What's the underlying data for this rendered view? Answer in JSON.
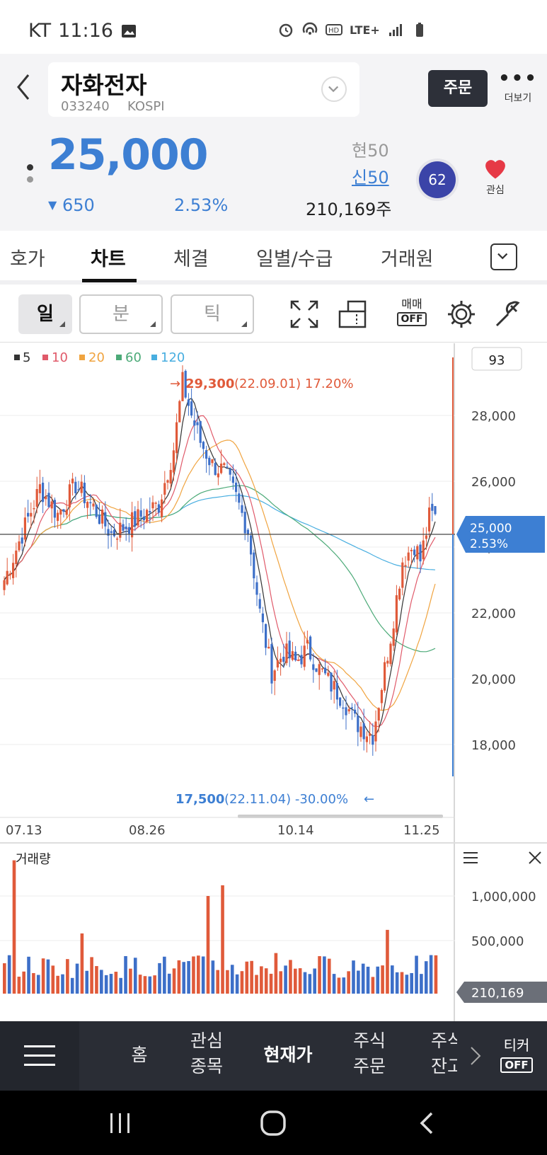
{
  "status_bar": {
    "carrier": "KT",
    "time": "11:16",
    "network": "LTE+"
  },
  "header": {
    "stock_name": "자화전자",
    "stock_code": "033240",
    "market": "KOSPI",
    "order_label": "주문",
    "more_label": "더보기"
  },
  "quote": {
    "price": "25,000",
    "change": "650",
    "change_pct": "2.53%",
    "volume": "210,169주",
    "hyun_label": "현50",
    "sin_label": "신50",
    "score": "62",
    "watch_label": "관심"
  },
  "tabs": [
    {
      "label": "호가"
    },
    {
      "label": "차트"
    },
    {
      "label": "체결"
    },
    {
      "label": "일별/수급"
    },
    {
      "label": "거래원"
    }
  ],
  "toolbar": {
    "period_day": "일",
    "period_min": "분",
    "period_tick": "틱",
    "trade_label": "매매",
    "trade_state": "OFF"
  },
  "chart_legend": [
    {
      "label": "5",
      "color": "#333333"
    },
    {
      "label": "10",
      "color": "#e05a6a"
    },
    {
      "label": "20",
      "color": "#f0a440"
    },
    {
      "label": "60",
      "color": "#4caa78"
    },
    {
      "label": "120",
      "color": "#48aee0"
    }
  ],
  "chart_annotations": {
    "high_text": "29,300",
    "high_detail": "(22.09.01) 17.20%",
    "low_text": "17,500",
    "low_detail": "(22.11.04) -30.00%",
    "price_tag_value": "25,000",
    "price_tag_pct": "2.53%",
    "top_box": "93",
    "volume_title": "거래량",
    "volume_tag": "210,169"
  },
  "chart_data": {
    "type": "candlestick",
    "y_ticks": [
      "28,000",
      "26,000",
      "24,000",
      "22,000",
      "20,000",
      "18,000"
    ],
    "y_values": [
      28000,
      26000,
      24000,
      22000,
      20000,
      18000
    ],
    "ylim": [
      17000,
      29800
    ],
    "x_ticks": [
      "07.13",
      "08.26",
      "10.14",
      "11.25"
    ],
    "current_price": 25000,
    "high": 29300,
    "low": 17500,
    "volume_ticks": [
      "1,000,000",
      "500,000"
    ],
    "volume_tick_values": [
      1000000,
      500000
    ],
    "volume_current": 210169
  },
  "bottom_nav": {
    "home": "홈",
    "watch_1": "관심",
    "watch_2": "종목",
    "current": "현재가",
    "stock_order_1": "주식",
    "stock_order_2": "주문",
    "balance_1": "주식",
    "balance_2": "잔고",
    "ticker_label": "티커",
    "ticker_state": "OFF"
  }
}
